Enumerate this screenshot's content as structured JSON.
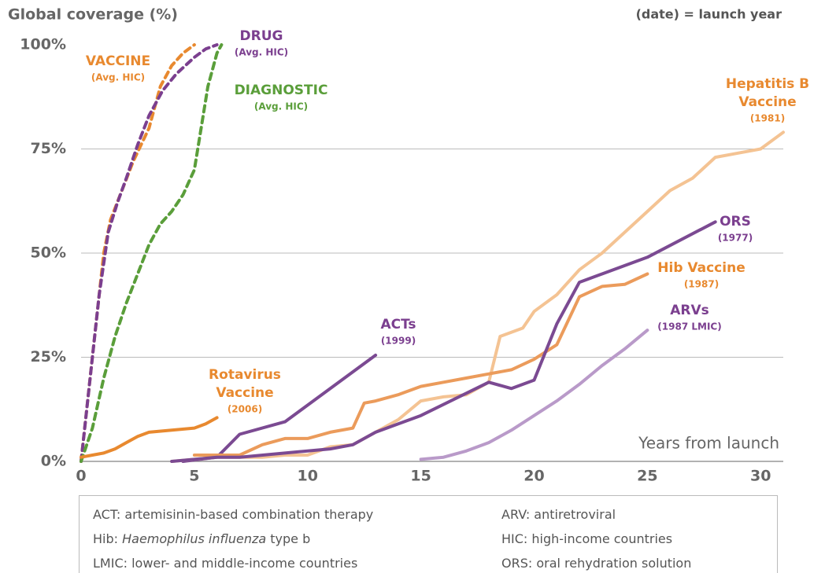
{
  "chart_data": {
    "type": "line",
    "title": "Global coverage (%)",
    "note": "(date) = launch year",
    "x_label": "Years from launch",
    "xlim": [
      0,
      31
    ],
    "ylim": [
      0,
      100
    ],
    "xticks": [
      0,
      5,
      10,
      15,
      20,
      25,
      30
    ],
    "yticks": [
      {
        "value": 0,
        "label": "0%"
      },
      {
        "value": 25,
        "label": "25%"
      },
      {
        "value": 50,
        "label": "50%"
      },
      {
        "value": 75,
        "label": "75%"
      },
      {
        "value": 100,
        "label": "100%"
      }
    ],
    "grid": true,
    "series": [
      {
        "label": [
          "VACCINE"
        ],
        "sublabel": "(Avg. HIC)",
        "color": "#e8892f",
        "label_color": "#e8892f",
        "dashed": true,
        "x": [
          0,
          0.3,
          0.7,
          1,
          1.3,
          1.8,
          2.3,
          3,
          3.5,
          4,
          4.5,
          5
        ],
        "values": [
          0,
          15,
          35,
          50,
          58,
          65,
          72,
          80,
          90,
          95,
          98,
          100
        ]
      },
      {
        "label": [
          "DRUG"
        ],
        "sublabel": "(Avg. HIC)",
        "color": "#7b3f8f",
        "label_color": "#7b3f8f",
        "dashed": true,
        "x": [
          0,
          0.4,
          0.8,
          1.2,
          1.6,
          2,
          2.5,
          3,
          3.6,
          4.2,
          5,
          5.5,
          6
        ],
        "values": [
          0,
          20,
          40,
          55,
          62,
          68,
          76,
          83,
          89,
          93,
          97,
          99,
          100
        ]
      },
      {
        "label": [
          "DIAGNOSTIC"
        ],
        "sublabel": "(Avg. HIC)",
        "color": "#5a9e3a",
        "label_color": "#5a9e3a",
        "dashed": true,
        "x": [
          0,
          0.5,
          1,
          1.5,
          2,
          2.5,
          3,
          3.5,
          4,
          4.5,
          5,
          5.3,
          5.6,
          6,
          6.2
        ],
        "values": [
          0,
          8,
          20,
          30,
          38,
          45,
          52,
          57,
          60,
          64,
          70,
          80,
          90,
          98,
          100
        ]
      },
      {
        "label": [
          "Rotavirus",
          "Vaccine"
        ],
        "sublabel": "(2006)",
        "color": "#e8892f",
        "label_color": "#e8892f",
        "dashed": false,
        "x": [
          0,
          0.5,
          1,
          1.5,
          2,
          2.5,
          3,
          4,
          5,
          5.5,
          6
        ],
        "values": [
          1,
          1.5,
          2,
          3,
          4.5,
          6,
          7,
          7.5,
          8,
          9,
          10.5
        ]
      },
      {
        "label": [
          "ACTs"
        ],
        "sublabel": "(1999)",
        "color": "#7b4a92",
        "label_color": "#7b3f8f",
        "dashed": false,
        "x": [
          4.5,
          6,
          7,
          9,
          13
        ],
        "values": [
          0,
          1,
          6.5,
          9.5,
          25.5
        ]
      },
      {
        "label": [
          "Hepatitis B",
          "Vaccine"
        ],
        "sublabel": "(1981)",
        "color": "#f4c393",
        "label_color": "#e8892f",
        "dashed": false,
        "x": [
          4,
          5,
          6,
          7,
          8,
          9,
          10,
          11,
          12,
          13,
          14,
          15,
          16,
          17,
          18,
          18.5,
          19.5,
          20,
          21,
          22,
          23,
          24,
          25,
          26,
          27,
          28,
          29,
          30,
          31
        ],
        "values": [
          0,
          0.5,
          1,
          1,
          1,
          1.5,
          1.5,
          3.5,
          4,
          7,
          10,
          14.5,
          15.5,
          16,
          19,
          30,
          32,
          36,
          40,
          46,
          50,
          55,
          60,
          65,
          68,
          73,
          74,
          75,
          79
        ]
      },
      {
        "label": [
          "Hib Vaccine"
        ],
        "sublabel": "(1987)",
        "color": "#eb9b5b",
        "label_color": "#e8892f",
        "dashed": false,
        "x": [
          5,
          6,
          7,
          8,
          9,
          10,
          11,
          12,
          12.5,
          13,
          14,
          15,
          16,
          17,
          18,
          19,
          20,
          21,
          22,
          23,
          24,
          25
        ],
        "values": [
          1.5,
          1.5,
          1.5,
          4,
          5.5,
          5.5,
          7,
          8,
          14,
          14.5,
          16,
          18,
          19,
          20,
          21,
          22,
          24.5,
          28,
          39.5,
          42,
          42.5,
          45
        ]
      },
      {
        "label": [
          "ORS"
        ],
        "sublabel": "(1977)",
        "color": "#7b4a92",
        "label_color": "#7b3f8f",
        "dashed": false,
        "x": [
          4,
          5,
          6,
          7,
          11,
          12,
          13,
          15,
          18,
          19,
          20,
          21,
          22,
          23,
          25,
          28
        ],
        "values": [
          0,
          0.5,
          1,
          1,
          3,
          4,
          7,
          11,
          19,
          17.5,
          19.5,
          33,
          43,
          45,
          49,
          57.5
        ]
      },
      {
        "label": [
          "ARVs"
        ],
        "sublabel": "(1987 LMIC)",
        "color": "#b99ac9",
        "label_color": "#7b3f8f",
        "dashed": false,
        "x": [
          15,
          16,
          17,
          18,
          19,
          20,
          21,
          22,
          23,
          24,
          25
        ],
        "values": [
          0.5,
          1,
          2.5,
          4.5,
          7.5,
          11,
          14.5,
          18.5,
          23,
          27,
          31.5
        ]
      }
    ]
  },
  "footnotes": [
    "ACT: artemisinin-based combination therapy",
    "ARV: antiretroviral",
    {
      "prefix": "Hib: ",
      "italic": "Haemophilus influenza",
      "suffix": " type b"
    },
    "HIC: high-income countries",
    "LMIC: lower- and middle-income countries",
    "ORS: oral rehydration solution"
  ]
}
